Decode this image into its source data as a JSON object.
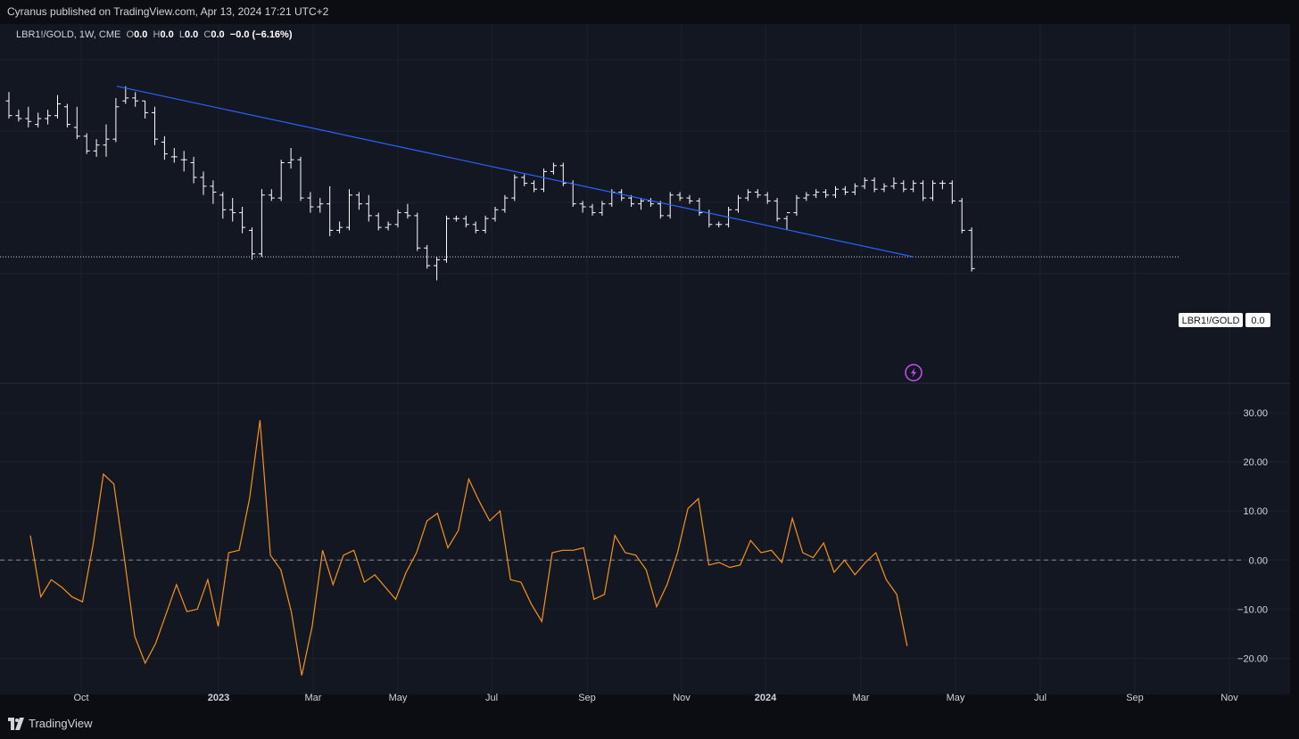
{
  "header": {
    "attribution": "Cyranus published on TradingView.com, Apr 13, 2024 17:21 UTC+2"
  },
  "legend": {
    "symbol": "LBR1!/GOLD, 1W, CME",
    "o_label": "O",
    "o_value": "0.0",
    "h_label": "H",
    "h_value": "0.0",
    "l_label": "L",
    "l_value": "0.0",
    "c_label": "C",
    "c_value": "0.0",
    "change": "−0.0 (−6.16%)"
  },
  "price_tag": {
    "symbol": "LBR1!/GOLD",
    "value": "0.0"
  },
  "footer": {
    "brand": "TradingView"
  },
  "colors": {
    "background": "#131722",
    "bars": "#ffffff",
    "trendline": "#2962ff",
    "oscillator": "#f7931a",
    "grid": "#1e222d",
    "alert_icon": "#c452f0"
  },
  "icons": {
    "alert": "lightning-alert-icon",
    "logo": "tradingview-logo-icon"
  },
  "chart_data": [
    {
      "type": "ohlc",
      "symbol": "LBR1!/GOLD",
      "interval": "1W",
      "x_axis": {
        "labels": [
          "Oct",
          "2023",
          "Mar",
          "May",
          "Jul",
          "Sep",
          "Nov",
          "2024",
          "Mar",
          "May",
          "Jul",
          "Sep",
          "Nov"
        ],
        "bold": [
          false,
          true,
          false,
          false,
          false,
          false,
          false,
          true,
          false,
          false,
          false,
          false,
          false
        ]
      },
      "price_shape": [
        {
          "o": 86,
          "h": 89,
          "l": 80,
          "c": 81
        },
        {
          "o": 81,
          "h": 83,
          "l": 79,
          "c": 80
        },
        {
          "o": 80,
          "h": 84,
          "l": 77,
          "c": 79
        },
        {
          "o": 78,
          "h": 82,
          "l": 77,
          "c": 80
        },
        {
          "o": 80,
          "h": 83,
          "l": 78,
          "c": 81
        },
        {
          "o": 81,
          "h": 88,
          "l": 80,
          "c": 85
        },
        {
          "o": 84,
          "h": 85,
          "l": 77,
          "c": 78
        },
        {
          "o": 77,
          "h": 84,
          "l": 73,
          "c": 74
        },
        {
          "o": 74,
          "h": 75,
          "l": 68,
          "c": 69
        },
        {
          "o": 69,
          "h": 73,
          "l": 67,
          "c": 71
        },
        {
          "o": 71,
          "h": 78,
          "l": 67,
          "c": 73
        },
        {
          "o": 73,
          "h": 87,
          "l": 72,
          "c": 84
        },
        {
          "o": 86,
          "h": 91,
          "l": 85,
          "c": 87
        },
        {
          "o": 87,
          "h": 89,
          "l": 84,
          "c": 86
        },
        {
          "o": 86,
          "h": 86,
          "l": 80,
          "c": 82
        },
        {
          "o": 82,
          "h": 84,
          "l": 71,
          "c": 73
        },
        {
          "o": 72,
          "h": 74,
          "l": 66,
          "c": 68
        },
        {
          "o": 67,
          "h": 70,
          "l": 65,
          "c": 67
        },
        {
          "o": 66,
          "h": 69,
          "l": 62,
          "c": 66
        },
        {
          "o": 65,
          "h": 67,
          "l": 58,
          "c": 60
        },
        {
          "o": 60,
          "h": 62,
          "l": 54,
          "c": 57
        },
        {
          "o": 57,
          "h": 59,
          "l": 51,
          "c": 55
        },
        {
          "o": 54,
          "h": 55,
          "l": 46,
          "c": 49
        },
        {
          "o": 49,
          "h": 53,
          "l": 45,
          "c": 48
        },
        {
          "o": 48,
          "h": 50,
          "l": 41,
          "c": 43
        },
        {
          "o": 42,
          "h": 43,
          "l": 32,
          "c": 34
        },
        {
          "o": 34,
          "h": 56,
          "l": 33,
          "c": 54
        },
        {
          "o": 54,
          "h": 56,
          "l": 52,
          "c": 53
        },
        {
          "o": 53,
          "h": 66,
          "l": 52,
          "c": 65
        },
        {
          "o": 65,
          "h": 70,
          "l": 63,
          "c": 66
        },
        {
          "o": 66,
          "h": 67,
          "l": 52,
          "c": 53
        },
        {
          "o": 53,
          "h": 55,
          "l": 48,
          "c": 50
        },
        {
          "o": 50,
          "h": 53,
          "l": 48,
          "c": 51
        },
        {
          "o": 51,
          "h": 57,
          "l": 40,
          "c": 42
        },
        {
          "o": 42,
          "h": 45,
          "l": 41,
          "c": 43
        },
        {
          "o": 43,
          "h": 56,
          "l": 42,
          "c": 54
        },
        {
          "o": 54,
          "h": 55,
          "l": 49,
          "c": 51
        },
        {
          "o": 51,
          "h": 54,
          "l": 45,
          "c": 47
        },
        {
          "o": 47,
          "h": 48,
          "l": 42,
          "c": 43
        },
        {
          "o": 43,
          "h": 45,
          "l": 42,
          "c": 44
        },
        {
          "o": 44,
          "h": 49,
          "l": 43,
          "c": 48
        },
        {
          "o": 48,
          "h": 51,
          "l": 46,
          "c": 47
        },
        {
          "o": 47,
          "h": 48,
          "l": 35,
          "c": 36
        },
        {
          "o": 36,
          "h": 37,
          "l": 29,
          "c": 30
        },
        {
          "o": 30,
          "h": 33,
          "l": 25,
          "c": 32
        },
        {
          "o": 32,
          "h": 47,
          "l": 31,
          "c": 46
        },
        {
          "o": 46,
          "h": 47,
          "l": 45,
          "c": 46
        },
        {
          "o": 46,
          "h": 47,
          "l": 43,
          "c": 44
        },
        {
          "o": 44,
          "h": 45,
          "l": 41,
          "c": 42
        },
        {
          "o": 42,
          "h": 47,
          "l": 41,
          "c": 46
        },
        {
          "o": 46,
          "h": 50,
          "l": 45,
          "c": 49
        },
        {
          "o": 49,
          "h": 54,
          "l": 48,
          "c": 53
        },
        {
          "o": 53,
          "h": 61,
          "l": 52,
          "c": 60
        },
        {
          "o": 60,
          "h": 61,
          "l": 57,
          "c": 58
        },
        {
          "o": 58,
          "h": 59,
          "l": 55,
          "c": 56
        },
        {
          "o": 56,
          "h": 63,
          "l": 55,
          "c": 62
        },
        {
          "o": 62,
          "h": 65,
          "l": 61,
          "c": 64
        },
        {
          "o": 64,
          "h": 65,
          "l": 57,
          "c": 58
        },
        {
          "o": 58,
          "h": 59,
          "l": 50,
          "c": 51
        },
        {
          "o": 51,
          "h": 52,
          "l": 48,
          "c": 50
        },
        {
          "o": 50,
          "h": 51,
          "l": 47,
          "c": 48
        },
        {
          "o": 48,
          "h": 52,
          "l": 47,
          "c": 51
        },
        {
          "o": 51,
          "h": 56,
          "l": 50,
          "c": 55
        },
        {
          "o": 55,
          "h": 56,
          "l": 52,
          "c": 53
        },
        {
          "o": 53,
          "h": 54,
          "l": 50,
          "c": 51
        },
        {
          "o": 51,
          "h": 53,
          "l": 49,
          "c": 52
        },
        {
          "o": 52,
          "h": 53,
          "l": 50,
          "c": 51
        },
        {
          "o": 51,
          "h": 52,
          "l": 46,
          "c": 47
        },
        {
          "o": 47,
          "h": 55,
          "l": 46,
          "c": 54
        },
        {
          "o": 54,
          "h": 55,
          "l": 52,
          "c": 53
        },
        {
          "o": 53,
          "h": 54,
          "l": 51,
          "c": 52
        },
        {
          "o": 52,
          "h": 53,
          "l": 47,
          "c": 48
        },
        {
          "o": 48,
          "h": 49,
          "l": 43,
          "c": 44
        },
        {
          "o": 44,
          "h": 45,
          "l": 43,
          "c": 44
        },
        {
          "o": 44,
          "h": 50,
          "l": 43,
          "c": 49
        },
        {
          "o": 49,
          "h": 54,
          "l": 48,
          "c": 53
        },
        {
          "o": 53,
          "h": 56,
          "l": 52,
          "c": 55
        },
        {
          "o": 55,
          "h": 56,
          "l": 53,
          "c": 54
        },
        {
          "o": 54,
          "h": 55,
          "l": 51,
          "c": 52
        },
        {
          "o": 52,
          "h": 53,
          "l": 45,
          "c": 46
        },
        {
          "o": 46,
          "h": 47,
          "l": 42,
          "c": 48
        },
        {
          "o": 48,
          "h": 54,
          "l": 47,
          "c": 53
        },
        {
          "o": 53,
          "h": 55,
          "l": 52,
          "c": 54
        },
        {
          "o": 54,
          "h": 56,
          "l": 53,
          "c": 55
        },
        {
          "o": 55,
          "h": 56,
          "l": 53,
          "c": 54
        },
        {
          "o": 54,
          "h": 57,
          "l": 53,
          "c": 56
        },
        {
          "o": 56,
          "h": 57,
          "l": 54,
          "c": 55
        },
        {
          "o": 55,
          "h": 58,
          "l": 54,
          "c": 57
        },
        {
          "o": 57,
          "h": 60,
          "l": 56,
          "c": 59
        },
        {
          "o": 59,
          "h": 60,
          "l": 55,
          "c": 56
        },
        {
          "o": 56,
          "h": 58,
          "l": 55,
          "c": 57
        },
        {
          "o": 57,
          "h": 60,
          "l": 56,
          "c": 58
        },
        {
          "o": 58,
          "h": 59,
          "l": 55,
          "c": 56
        },
        {
          "o": 56,
          "h": 59,
          "l": 55,
          "c": 58
        },
        {
          "o": 58,
          "h": 59,
          "l": 52,
          "c": 53
        },
        {
          "o": 53,
          "h": 59,
          "l": 52,
          "c": 58
        },
        {
          "o": 58,
          "h": 59,
          "l": 56,
          "c": 58
        },
        {
          "o": 58,
          "h": 59,
          "l": 51,
          "c": 52
        },
        {
          "o": 52,
          "h": 53,
          "l": 41,
          "c": 42
        },
        {
          "o": 42,
          "h": 43,
          "l": 28,
          "c": 29
        }
      ],
      "last_value": 0.0,
      "trendline": {
        "from_bar": 12,
        "from_value": 91,
        "to_bar": 93,
        "to_value": 33
      },
      "reference_line": 33
    },
    {
      "type": "line",
      "name": "",
      "y_ticks": [
        "30.00",
        "20.00",
        "10.00",
        "0.00",
        "−10.00",
        "−20.00"
      ],
      "tick_values": [
        30,
        20,
        10,
        0,
        -10,
        -20
      ],
      "ylim": [
        -27,
        32
      ],
      "zero_line": 0,
      "values": [
        5.0,
        -7.5,
        -4.0,
        -5.5,
        -7.5,
        -8.5,
        3.0,
        17.5,
        15.5,
        0.5,
        -15.5,
        -21.0,
        -17.0,
        -11.0,
        -5.0,
        -10.5,
        -10.0,
        -4.0,
        -13.5,
        1.5,
        2.0,
        12.5,
        28.5,
        1.0,
        -2.0,
        -10.5,
        -23.5,
        -13.5,
        2.0,
        -5.0,
        1.0,
        2.0,
        -4.5,
        -3.0,
        -5.5,
        -8.0,
        -2.5,
        1.5,
        8.0,
        9.5,
        2.5,
        6.0,
        16.5,
        12.0,
        8.0,
        10.0,
        -4.0,
        -4.5,
        -9.0,
        -12.5,
        1.5,
        2.0,
        2.0,
        2.5,
        -8.0,
        -7.0,
        5.0,
        1.5,
        1.0,
        -2.0,
        -9.5,
        -5.0,
        1.5,
        10.5,
        12.5,
        -1.0,
        -0.5,
        -1.5,
        -1.0,
        4.0,
        1.5,
        2.0,
        -0.5,
        8.5,
        1.5,
        0.5,
        3.5,
        -2.5,
        0.0,
        -3.0,
        -0.5,
        1.5,
        -4.0,
        -7.0,
        -17.5
      ]
    }
  ]
}
